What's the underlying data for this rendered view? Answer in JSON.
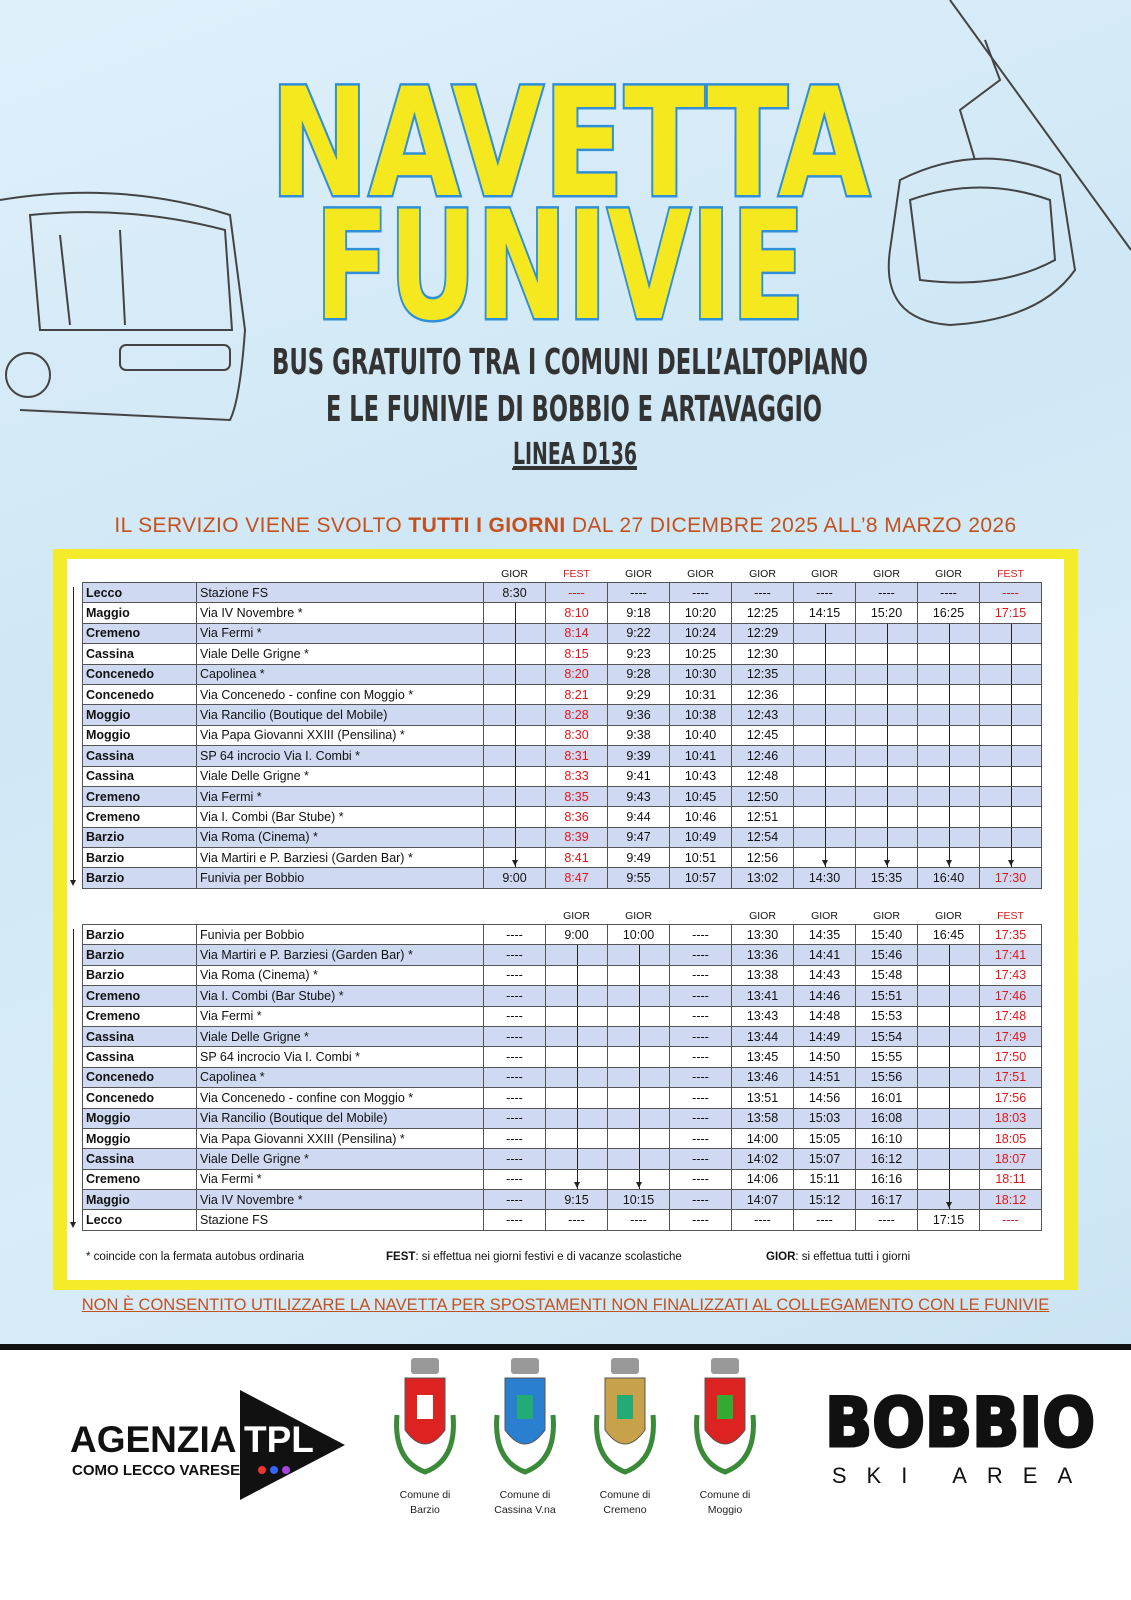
{
  "header": {
    "title": [
      "NAVETTA",
      "FUNIVIE"
    ],
    "subtitle": [
      "BUS GRATUITO TRA I COMUNI DELL’ALTOPIANO",
      "E LE FUNIVIE DI BOBBIO E ARTAVAGGIO"
    ],
    "line": "LINEA D136"
  },
  "notice": {
    "before": "IL SERVIZIO VIENE SVOLTO ",
    "bold": "TUTTI I GIORNI",
    "after": " DAL 27 DICEMBRE 2025 ALL’8 MARZO 2026"
  },
  "tables": [
    {
      "headers": [
        "GIOR",
        "FEST",
        "GIOR",
        "GIOR",
        "GIOR",
        "GIOR",
        "GIOR",
        "GIOR",
        "FEST"
      ],
      "rows": [
        [
          "Lecco",
          "Stazione FS",
          "8:30",
          "----",
          "----",
          "----",
          "----",
          "----",
          "----",
          "----",
          "----"
        ],
        [
          "Maggio",
          "Via IV Novembre *",
          null,
          "8:10",
          "9:18",
          "10:20",
          "12:25",
          "14:15",
          "15:20",
          "16:25",
          "17:15"
        ],
        [
          "Cremeno",
          "Via Fermi *",
          null,
          "8:14",
          "9:22",
          "10:24",
          "12:29",
          null,
          null,
          null,
          null
        ],
        [
          "Cassina",
          "Viale Delle Grigne *",
          null,
          "8:15",
          "9:23",
          "10:25",
          "12:30",
          null,
          null,
          null,
          null
        ],
        [
          "Concenedo",
          "Capolinea *",
          null,
          "8:20",
          "9:28",
          "10:30",
          "12:35",
          null,
          null,
          null,
          null
        ],
        [
          "Concenedo",
          "Via Concenedo - confine con Moggio *",
          null,
          "8:21",
          "9:29",
          "10:31",
          "12:36",
          null,
          null,
          null,
          null
        ],
        [
          "Moggio",
          "Via Rancilio (Boutique del Mobile)",
          null,
          "8:28",
          "9:36",
          "10:38",
          "12:43",
          null,
          null,
          null,
          null
        ],
        [
          "Moggio",
          "Via Papa Giovanni XXIII (Pensilina) *",
          null,
          "8:30",
          "9:38",
          "10:40",
          "12:45",
          null,
          null,
          null,
          null
        ],
        [
          "Cassina",
          "SP 64 incrocio Via I. Combi *",
          null,
          "8:31",
          "9:39",
          "10:41",
          "12:46",
          null,
          null,
          null,
          null
        ],
        [
          "Cassina",
          "Viale Delle Grigne *",
          null,
          "8:33",
          "9:41",
          "10:43",
          "12:48",
          null,
          null,
          null,
          null
        ],
        [
          "Cremeno",
          "Via Fermi *",
          null,
          "8:35",
          "9:43",
          "10:45",
          "12:50",
          null,
          null,
          null,
          null
        ],
        [
          "Cremeno",
          "Via I. Combi (Bar Stube) *",
          null,
          "8:36",
          "9:44",
          "10:46",
          "12:51",
          null,
          null,
          null,
          null
        ],
        [
          "Barzio",
          "Via Roma (Cinema) *",
          null,
          "8:39",
          "9:47",
          "10:49",
          "12:54",
          null,
          null,
          null,
          null
        ],
        [
          "Barzio",
          "Via Martiri e P. Barziesi (Garden Bar) *",
          null,
          "8:41",
          "9:49",
          "10:51",
          "12:56",
          null,
          null,
          null,
          null
        ],
        [
          "Barzio",
          "Funivia per Bobbio",
          "9:00",
          "8:47",
          "9:55",
          "10:57",
          "13:02",
          "14:30",
          "15:35",
          "16:40",
          "17:30"
        ]
      ]
    },
    {
      "headers": [
        null,
        "GIOR",
        "GIOR",
        null,
        "GIOR",
        "GIOR",
        "GIOR",
        "GIOR",
        "FEST"
      ],
      "rows": [
        [
          "Barzio",
          "Funivia per Bobbio",
          "----",
          "9:00",
          "10:00",
          "----",
          "13:30",
          "14:35",
          "15:40",
          "16:45",
          "17:35"
        ],
        [
          "Barzio",
          "Via Martiri e P. Barziesi (Garden Bar) *",
          "----",
          null,
          null,
          "----",
          "13:36",
          "14:41",
          "15:46",
          null,
          "17:41"
        ],
        [
          "Barzio",
          "Via Roma (Cinema) *",
          "----",
          null,
          null,
          "----",
          "13:38",
          "14:43",
          "15:48",
          null,
          "17:43"
        ],
        [
          "Cremeno",
          "Via I. Combi (Bar Stube) *",
          "----",
          null,
          null,
          "----",
          "13:41",
          "14:46",
          "15:51",
          null,
          "17:46"
        ],
        [
          "Cremeno",
          "Via Fermi *",
          "----",
          null,
          null,
          "----",
          "13:43",
          "14:48",
          "15:53",
          null,
          "17:48"
        ],
        [
          "Cassina",
          "Viale Delle Grigne *",
          "----",
          null,
          null,
          "----",
          "13:44",
          "14:49",
          "15:54",
          null,
          "17:49"
        ],
        [
          "Cassina",
          "SP 64 incrocio Via I. Combi *",
          "----",
          null,
          null,
          "----",
          "13:45",
          "14:50",
          "15:55",
          null,
          "17:50"
        ],
        [
          "Concenedo",
          "Capolinea *",
          "----",
          null,
          null,
          "----",
          "13:46",
          "14:51",
          "15:56",
          null,
          "17:51"
        ],
        [
          "Concenedo",
          "Via Concenedo - confine con Moggio *",
          "----",
          null,
          null,
          "----",
          "13:51",
          "14:56",
          "16:01",
          null,
          "17:56"
        ],
        [
          "Moggio",
          "Via Rancilio (Boutique del Mobile)",
          "----",
          null,
          null,
          "----",
          "13:58",
          "15:03",
          "16:08",
          null,
          "18:03"
        ],
        [
          "Moggio",
          "Via Papa Giovanni XXIII (Pensilina) *",
          "----",
          null,
          null,
          "----",
          "14:00",
          "15:05",
          "16:10",
          null,
          "18:05"
        ],
        [
          "Cassina",
          "Viale Delle Grigne *",
          "----",
          null,
          null,
          "----",
          "14:02",
          "15:07",
          "16:12",
          null,
          "18:07"
        ],
        [
          "Cremeno",
          "Via Fermi *",
          "----",
          null,
          null,
          "----",
          "14:06",
          "15:11",
          "16:16",
          null,
          "18:11"
        ],
        [
          "Maggio",
          "Via IV Novembre *",
          "----",
          "9:15",
          "10:15",
          "----",
          "14:07",
          "15:12",
          "16:17",
          null,
          "18:12"
        ],
        [
          "Lecco",
          "Stazione FS",
          "----",
          "----",
          "----",
          "----",
          "----",
          "----",
          "----",
          "17:15",
          "----"
        ]
      ]
    }
  ],
  "legend": {
    "star": "* coincide con la fermata autobus ordinaria",
    "fest_key": "FEST",
    "fest_text": ": si effettua nei giorni festivi e di vacanze scolastiche",
    "gior_key": "GIOR",
    "gior_text": ": si effettua tutti i giorni"
  },
  "warning": "NON È CONSENTITO UTILIZZARE LA NAVETTA PER SPOSTAMENTI NON FINALIZZATI AL COLLEGAMENTO CON LE FUNIVIE",
  "footer": {
    "agency": {
      "name": "AGENZIA",
      "tpl": "TPL",
      "area": "COMO LECCO VARESE"
    },
    "comuni": [
      [
        "Comune di",
        "Barzio"
      ],
      [
        "Comune di",
        "Cassina V.na"
      ],
      [
        "Comune di",
        "Cremeno"
      ],
      [
        "Comune di",
        "Moggio"
      ]
    ],
    "brand": "BOBBIO",
    "brand_sub": "SKI AREA"
  }
}
